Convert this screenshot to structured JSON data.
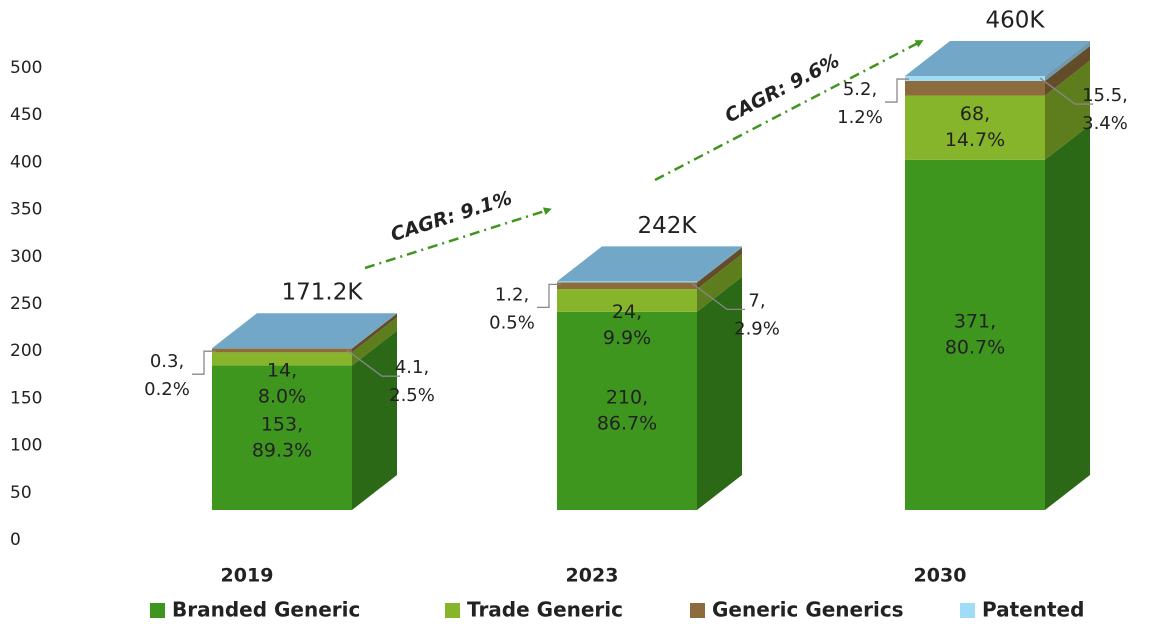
{
  "chart_data": {
    "type": "bar3d",
    "categories": [
      "2019",
      "2023",
      "2030"
    ],
    "series": [
      {
        "name": "Branded Generic",
        "color": "#3f961f",
        "values": [
          153,
          210,
          371
        ],
        "value_labels": [
          "153,",
          "210,",
          "371,"
        ],
        "share_labels": [
          "89.3%",
          "86.7%",
          "80.7%"
        ]
      },
      {
        "name": "Trade Generic",
        "color": "#86b42a",
        "values": [
          14,
          24,
          68
        ],
        "value_labels": [
          "14,",
          "24,",
          "68,"
        ],
        "share_labels": [
          "8.0%",
          "9.9%",
          "14.7%"
        ]
      },
      {
        "name": "Generic Generics",
        "color": "#8c6c3c",
        "values": [
          4.1,
          7,
          15.5
        ],
        "value_labels": [
          "4.1,",
          "7,",
          "15.5,"
        ],
        "share_labels": [
          "2.5%",
          "2.9%",
          "3.4%"
        ]
      },
      {
        "name": "Patented",
        "color": "#9fdcf6",
        "values": [
          0.3,
          1.2,
          5.2
        ],
        "value_labels": [
          "0.3,",
          "1.2,",
          "5.2,"
        ],
        "share_labels": [
          "0.2%",
          "0.5%",
          "1.2%"
        ]
      }
    ],
    "total_labels": [
      "171.2K",
      "242K",
      "460K"
    ],
    "annotations": [
      "CAGR: 9.1%",
      "CAGR: 9.6%"
    ],
    "ylim": [
      0,
      500
    ],
    "yticks": [
      0,
      50,
      100,
      150,
      200,
      250,
      300,
      350,
      400,
      450,
      500
    ],
    "grid": false,
    "legend": "bottom"
  }
}
